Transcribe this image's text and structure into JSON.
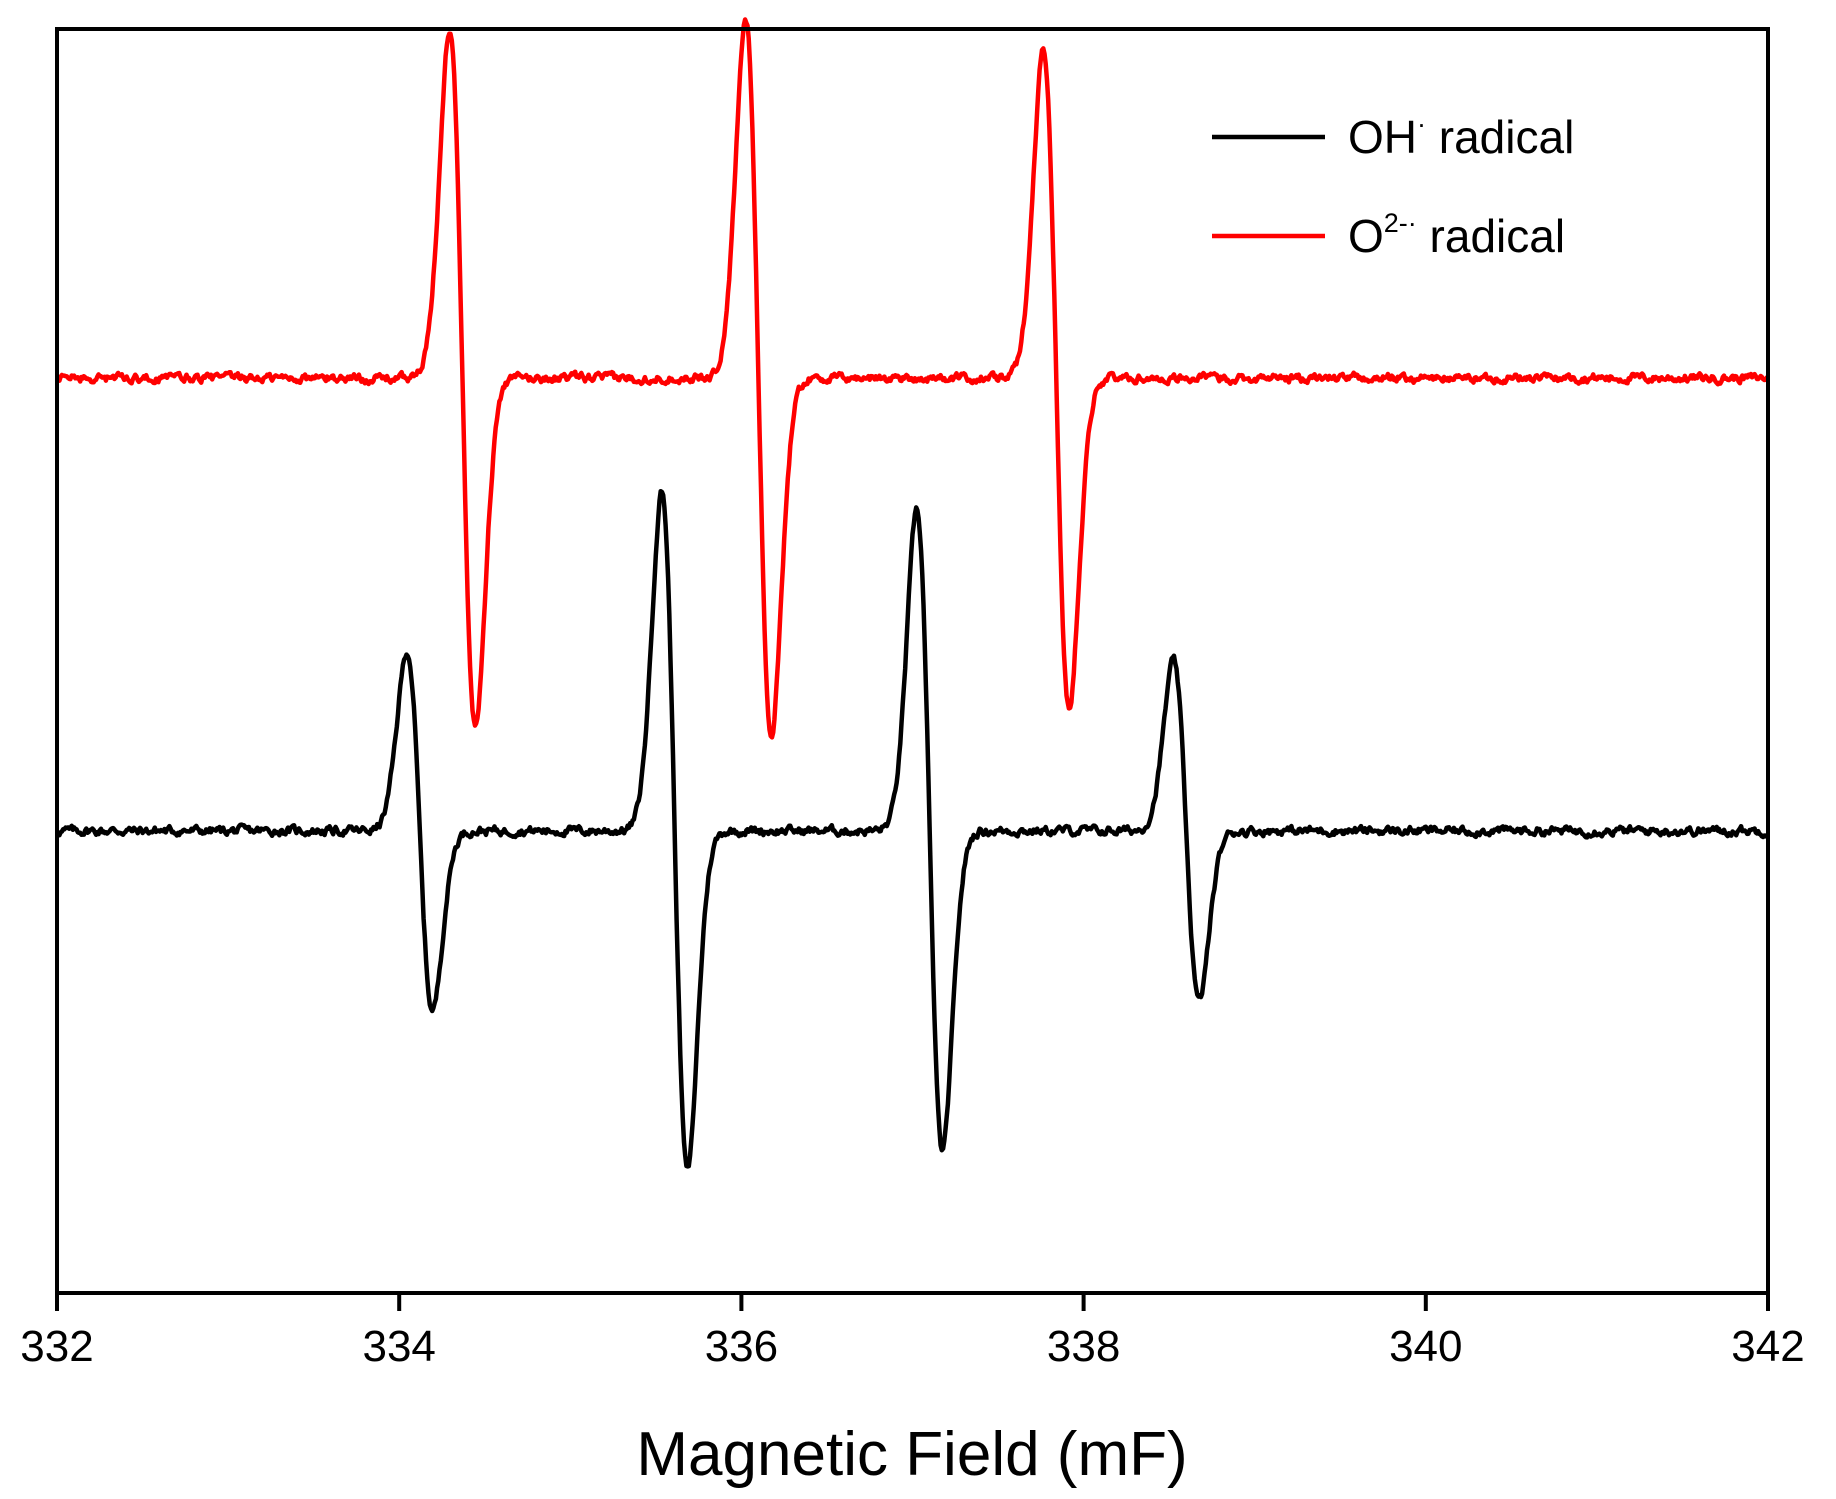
{
  "chart_data": {
    "type": "line",
    "title": "",
    "xlabel": "Magnetic Field (mF)",
    "ylabel": "",
    "xlim": [
      332,
      342
    ],
    "x_ticks": [
      "332",
      "334",
      "336",
      "338",
      "340",
      "342"
    ],
    "y_ticks_shown": false,
    "grid": false,
    "legend_position": "top-right",
    "series": [
      {
        "name": "OH· radical",
        "legend_base": "OH",
        "legend_sup": "·",
        "legend_suffix": " radical",
        "color": "#000000",
        "baseline": -1.55,
        "peaks": [
          {
            "center": 334.12,
            "amplitude": 0.95
          },
          {
            "center": 335.61,
            "amplitude": 1.8
          },
          {
            "center": 337.1,
            "amplitude": 1.7
          },
          {
            "center": 338.6,
            "amplitude": 0.9
          }
        ]
      },
      {
        "name": "O2-· radical",
        "legend_base": "O",
        "legend_sup": "2-·",
        "legend_suffix": "  radical",
        "color": "#ff0000",
        "baseline": 0.85,
        "peaks": [
          {
            "center": 334.37,
            "amplitude": 1.85
          },
          {
            "center": 336.1,
            "amplitude": 1.9
          },
          {
            "center": 337.84,
            "amplitude": 1.75
          }
        ]
      }
    ]
  }
}
